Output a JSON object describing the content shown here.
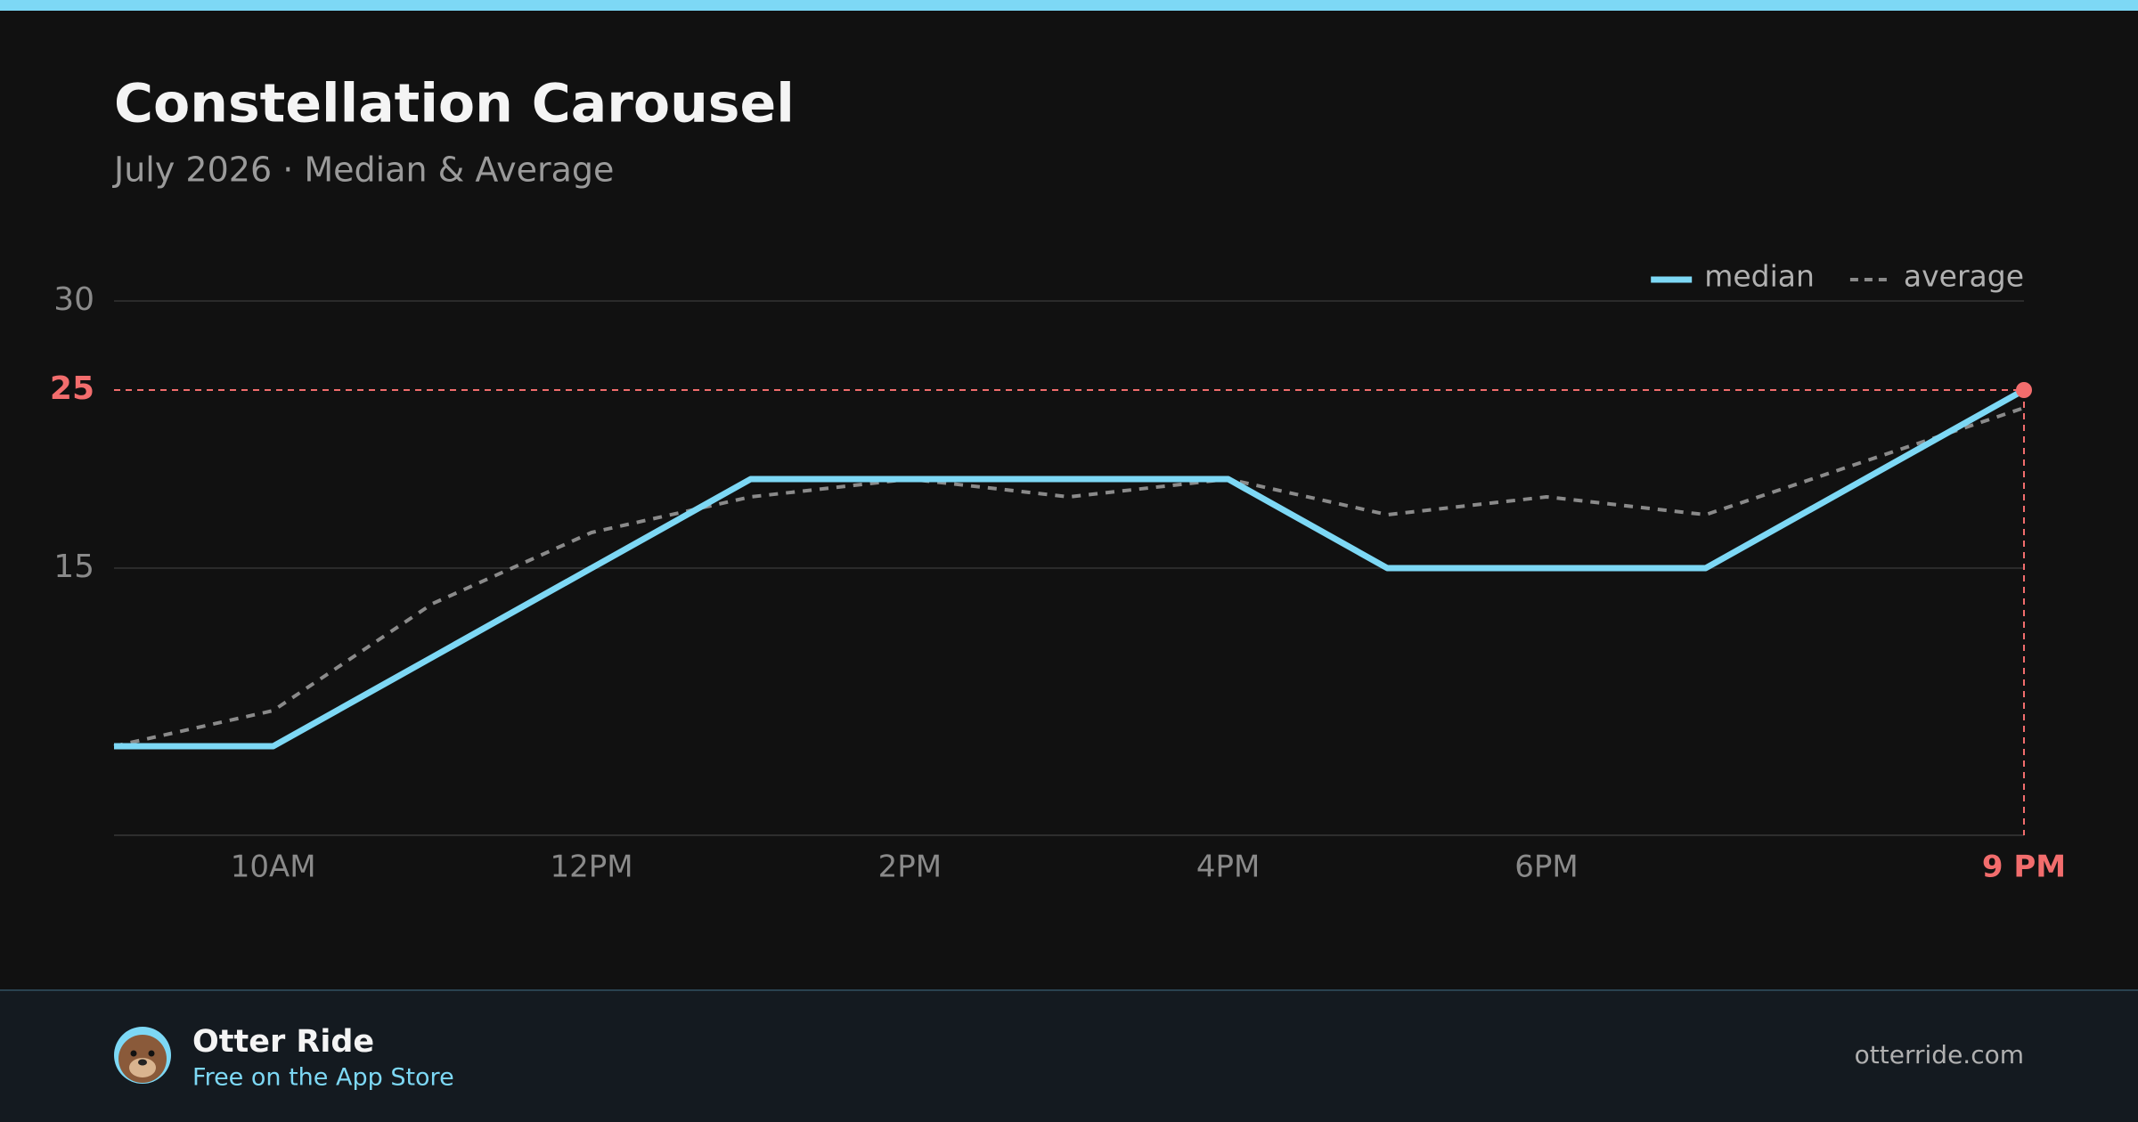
{
  "chart_data": {
    "type": "line",
    "title": "Constellation Carousel",
    "subtitle": "July 2026 · Median & Average",
    "categories": [
      null,
      "10AM",
      null,
      "12PM",
      null,
      "2PM",
      null,
      "4PM",
      null,
      "6PM",
      null,
      null,
      "9 PM"
    ],
    "series": [
      {
        "name": "median",
        "color": "#7dd8f5",
        "style": "solid",
        "values": [
          5,
          5,
          10,
          15,
          20,
          20,
          20,
          20,
          15,
          15,
          15,
          20,
          25
        ]
      },
      {
        "name": "average",
        "color": "#8a8a8a",
        "style": "dashed",
        "values": [
          5,
          7,
          13,
          17,
          19,
          20,
          19,
          20,
          18,
          19,
          18,
          21,
          24
        ]
      }
    ],
    "ylim": [
      0,
      30
    ],
    "yticks": [
      15,
      25,
      30
    ],
    "grid": true,
    "legend": "top-right",
    "highlight": {
      "x_index": 12,
      "y": 25,
      "color": "#f26d6d"
    }
  },
  "footer": {
    "app_name": "Otter Ride",
    "tagline": "Free on the App Store",
    "website": "otterride.com"
  }
}
